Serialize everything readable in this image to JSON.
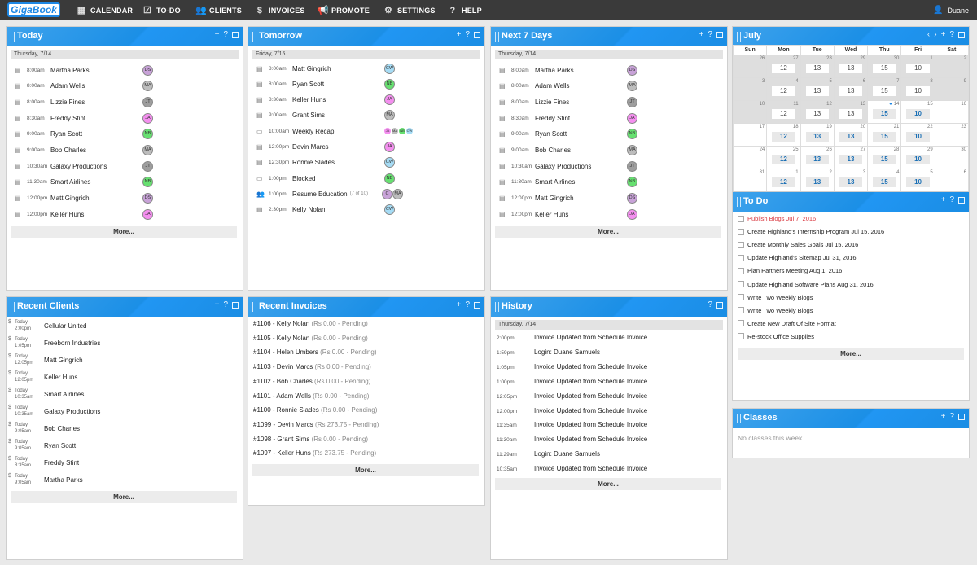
{
  "app": {
    "logo": "GigaBook",
    "user": "Duane"
  },
  "nav": [
    {
      "label": "CALENDAR",
      "icon": "calendar-icon"
    },
    {
      "label": "TO-DO",
      "icon": "checkbox-icon"
    },
    {
      "label": "CLIENTS",
      "icon": "clients-icon"
    },
    {
      "label": "INVOICES",
      "icon": "dollar-icon"
    },
    {
      "label": "PROMOTE",
      "icon": "megaphone-icon"
    },
    {
      "label": "SETTINGS",
      "icon": "gear-icon"
    },
    {
      "label": "HELP",
      "icon": "help-icon"
    }
  ],
  "today": {
    "title": "Today",
    "day": "Thursday, 7/14",
    "more": "More...",
    "items": [
      {
        "time": "8:00am",
        "name": "Martha Parks",
        "avatar": "DS",
        "color": "#c8a2d8"
      },
      {
        "time": "8:00am",
        "name": "Adam Wells",
        "avatar": "MA",
        "color": "#bdbdbd"
      },
      {
        "time": "8:00am",
        "name": "Lizzie Fines",
        "avatar": "JT",
        "color": "#9e9e9e"
      },
      {
        "time": "8:30am",
        "name": "Freddy Stint",
        "avatar": "JA",
        "color": "#f48fef"
      },
      {
        "time": "9:00am",
        "name": "Ryan Scott",
        "avatar": "NB",
        "color": "#66e070"
      },
      {
        "time": "9:00am",
        "name": "Bob Charles",
        "avatar": "MA",
        "color": "#bdbdbd"
      },
      {
        "time": "10:30am",
        "name": "Galaxy Productions",
        "avatar": "JT",
        "color": "#9e9e9e"
      },
      {
        "time": "11:30am",
        "name": "Smart Airlines",
        "avatar": "NB",
        "color": "#66e070"
      },
      {
        "time": "12:00pm",
        "name": "Matt Gingrich",
        "avatar": "DS",
        "color": "#c8a2d8"
      },
      {
        "time": "12:00pm",
        "name": "Keller Huns",
        "avatar": "JA",
        "color": "#f48fef"
      }
    ]
  },
  "tomorrow": {
    "title": "Tomorrow",
    "day": "Friday, 7/15",
    "items": [
      {
        "time": "8:00am",
        "name": "Matt Gingrich",
        "avatars": [
          {
            "t": "CW",
            "c": "#a6dcf5"
          }
        ],
        "icon": "appointment-icon"
      },
      {
        "time": "8:00am",
        "name": "Ryan Scott",
        "avatars": [
          {
            "t": "NB",
            "c": "#66e070"
          }
        ],
        "icon": "appointment-icon"
      },
      {
        "time": "8:30am",
        "name": "Keller Huns",
        "avatars": [
          {
            "t": "JA",
            "c": "#f48fef"
          }
        ],
        "icon": "appointment-icon"
      },
      {
        "time": "9:00am",
        "name": "Grant Sims",
        "avatars": [
          {
            "t": "MA",
            "c": "#bdbdbd"
          }
        ],
        "icon": "appointment-icon"
      },
      {
        "time": "10:00am",
        "name": "Weekly Recap",
        "avatars": [
          {
            "t": "JA",
            "c": "#f48fef"
          },
          {
            "t": "MA",
            "c": "#bdbdbd"
          },
          {
            "t": "NB",
            "c": "#66e070"
          },
          {
            "t": "CW",
            "c": "#a6dcf5"
          }
        ],
        "icon": "event-icon",
        "small": true
      },
      {
        "time": "12:00pm",
        "name": "Devin Marcs",
        "avatars": [
          {
            "t": "JA",
            "c": "#f48fef"
          }
        ],
        "icon": "appointment-icon"
      },
      {
        "time": "12:30pm",
        "name": "Ronnie Slades",
        "avatars": [
          {
            "t": "CW",
            "c": "#a6dcf5"
          }
        ],
        "icon": "appointment-icon"
      },
      {
        "time": "1:00pm",
        "name": "Blocked",
        "avatars": [
          {
            "t": "NB",
            "c": "#66e070"
          }
        ],
        "icon": "event-icon"
      },
      {
        "time": "1:00pm",
        "name": "Resume Education",
        "suffix": "(7 of 10)",
        "avatars": [
          {
            "t": "C",
            "c": "#c8a2d8"
          },
          {
            "t": "MA",
            "c": "#bdbdbd"
          }
        ],
        "icon": "group-icon"
      },
      {
        "time": "2:30pm",
        "name": "Kelly Nolan",
        "avatars": [
          {
            "t": "CW",
            "c": "#a6dcf5"
          }
        ],
        "icon": "appointment-icon"
      }
    ]
  },
  "next7": {
    "title": "Next 7 Days",
    "day": "Thursday, 7/14",
    "more": "More...",
    "items": [
      {
        "time": "8:00am",
        "name": "Martha Parks",
        "avatar": "DS",
        "color": "#c8a2d8"
      },
      {
        "time": "8:00am",
        "name": "Adam Wells",
        "avatar": "MA",
        "color": "#bdbdbd"
      },
      {
        "time": "8:00am",
        "name": "Lizzie Fines",
        "avatar": "JT",
        "color": "#9e9e9e"
      },
      {
        "time": "8:30am",
        "name": "Freddy Stint",
        "avatar": "JA",
        "color": "#f48fef"
      },
      {
        "time": "9:00am",
        "name": "Ryan Scott",
        "avatar": "NB",
        "color": "#66e070"
      },
      {
        "time": "9:00am",
        "name": "Bob Charles",
        "avatar": "MA",
        "color": "#bdbdbd"
      },
      {
        "time": "10:30am",
        "name": "Galaxy Productions",
        "avatar": "JT",
        "color": "#9e9e9e"
      },
      {
        "time": "11:30am",
        "name": "Smart Airlines",
        "avatar": "NB",
        "color": "#66e070"
      },
      {
        "time": "12:00pm",
        "name": "Matt Gingrich",
        "avatar": "DS",
        "color": "#c8a2d8"
      },
      {
        "time": "12:00pm",
        "name": "Keller Huns",
        "avatar": "JA",
        "color": "#f48fef"
      }
    ]
  },
  "calendar": {
    "title": "July",
    "headers": [
      "Sun",
      "Mon",
      "Tue",
      "Wed",
      "Thu",
      "Fri",
      "Sat"
    ],
    "weeks": [
      [
        {
          "d": "26",
          "c": "",
          "p": 1
        },
        {
          "d": "27",
          "c": "12",
          "p": 1
        },
        {
          "d": "28",
          "c": "13",
          "p": 1
        },
        {
          "d": "29",
          "c": "13",
          "p": 1
        },
        {
          "d": "30",
          "c": "15",
          "p": 1
        },
        {
          "d": "1",
          "c": "10",
          "p": 1
        },
        {
          "d": "2",
          "c": "",
          "p": 1
        }
      ],
      [
        {
          "d": "3",
          "c": "",
          "p": 1
        },
        {
          "d": "4",
          "c": "12",
          "p": 1
        },
        {
          "d": "5",
          "c": "13",
          "p": 1
        },
        {
          "d": "6",
          "c": "13",
          "p": 1
        },
        {
          "d": "7",
          "c": "15",
          "p": 1
        },
        {
          "d": "8",
          "c": "10",
          "p": 1
        },
        {
          "d": "9",
          "c": "",
          "p": 1
        }
      ],
      [
        {
          "d": "10",
          "c": "",
          "p": 1
        },
        {
          "d": "11",
          "c": "12",
          "p": 1
        },
        {
          "d": "12",
          "c": "13",
          "p": 1
        },
        {
          "d": "13",
          "c": "13",
          "p": 1
        },
        {
          "d": "14",
          "c": "15",
          "p": 0,
          "today": 1
        },
        {
          "d": "15",
          "c": "10",
          "p": 0
        },
        {
          "d": "16",
          "c": "",
          "p": 0
        }
      ],
      [
        {
          "d": "17",
          "c": "",
          "p": 0
        },
        {
          "d": "18",
          "c": "12",
          "p": 0
        },
        {
          "d": "19",
          "c": "13",
          "p": 0
        },
        {
          "d": "20",
          "c": "13",
          "p": 0
        },
        {
          "d": "21",
          "c": "15",
          "p": 0
        },
        {
          "d": "22",
          "c": "10",
          "p": 0
        },
        {
          "d": "23",
          "c": "",
          "p": 0
        }
      ],
      [
        {
          "d": "24",
          "c": "",
          "p": 0
        },
        {
          "d": "25",
          "c": "12",
          "p": 0
        },
        {
          "d": "26",
          "c": "13",
          "p": 0
        },
        {
          "d": "27",
          "c": "13",
          "p": 0
        },
        {
          "d": "28",
          "c": "15",
          "p": 0
        },
        {
          "d": "29",
          "c": "10",
          "p": 0
        },
        {
          "d": "30",
          "c": "",
          "p": 0
        }
      ],
      [
        {
          "d": "31",
          "c": "",
          "p": 0
        },
        {
          "d": "1",
          "c": "12",
          "p": 0
        },
        {
          "d": "2",
          "c": "13",
          "p": 0
        },
        {
          "d": "3",
          "c": "13",
          "p": 0
        },
        {
          "d": "4",
          "c": "15",
          "p": 0
        },
        {
          "d": "5",
          "c": "10",
          "p": 0
        },
        {
          "d": "6",
          "c": "",
          "p": 0
        }
      ]
    ]
  },
  "todo": {
    "title": "To Do",
    "more": "More...",
    "items": [
      {
        "text": "Publish Blogs Jul 7, 2016",
        "overdue": true
      },
      {
        "text": "Create Highland's Internship Program Jul 15, 2016"
      },
      {
        "text": "Create Monthly Sales Goals Jul 15, 2016"
      },
      {
        "text": "Update Highland's Sitemap Jul 31, 2016"
      },
      {
        "text": "Plan Partners Meeting Aug 1, 2016"
      },
      {
        "text": "Update Highland Software Plans Aug 31, 2016"
      },
      {
        "text": "Write Two Weekly Blogs"
      },
      {
        "text": "Write Two Weekly Blogs"
      },
      {
        "text": "Create New Draft Of Site Format"
      },
      {
        "text": "Re-stock Office Supplies"
      }
    ]
  },
  "clients": {
    "title": "Recent Clients",
    "more": "More...",
    "items": [
      {
        "day": "Today",
        "time": "2:00pm",
        "name": "Cellular United"
      },
      {
        "day": "Today",
        "time": "1:05pm",
        "name": "Freeborn Industries"
      },
      {
        "day": "Today",
        "time": "12:05pm",
        "name": "Matt Gingrich"
      },
      {
        "day": "Today",
        "time": "12:05pm",
        "name": "Keller Huns"
      },
      {
        "day": "Today",
        "time": "10:35am",
        "name": "Smart Airlines"
      },
      {
        "day": "Today",
        "time": "10:35am",
        "name": "Galaxy Productions"
      },
      {
        "day": "Today",
        "time": "9:05am",
        "name": "Bob Charles"
      },
      {
        "day": "Today",
        "time": "9:05am",
        "name": "Ryan Scott"
      },
      {
        "day": "Today",
        "time": "8:35am",
        "name": "Freddy Stint"
      },
      {
        "day": "Today",
        "time": "9:05am",
        "name": "Martha Parks"
      }
    ]
  },
  "invoices": {
    "title": "Recent Invoices",
    "more": "More...",
    "items": [
      {
        "label": "#1106 - Kelly Nolan",
        "status": "(Rs 0.00 - Pending)"
      },
      {
        "label": "#1105 - Kelly Nolan",
        "status": "(Rs 0.00 - Pending)"
      },
      {
        "label": "#1104 - Helen Umbers",
        "status": "(Rs 0.00 - Pending)"
      },
      {
        "label": "#1103 - Devin Marcs",
        "status": "(Rs 0.00 - Pending)"
      },
      {
        "label": "#1102 - Bob Charles",
        "status": "(Rs 0.00 - Pending)"
      },
      {
        "label": "#1101 - Adam Wells",
        "status": "(Rs 0.00 - Pending)"
      },
      {
        "label": "#1100 - Ronnie Slades",
        "status": "(Rs 0.00 - Pending)"
      },
      {
        "label": "#1099 - Devin Marcs",
        "status": "(Rs 273.75 - Pending)"
      },
      {
        "label": "#1098 - Grant Sims",
        "status": "(Rs 0.00 - Pending)"
      },
      {
        "label": "#1097 - Keller Huns",
        "status": "(Rs 273.75 - Pending)"
      }
    ]
  },
  "history": {
    "title": "History",
    "day": "Thursday, 7/14",
    "more": "More...",
    "items": [
      {
        "time": "2:00pm",
        "text": "Invoice Updated from Schedule Invoice"
      },
      {
        "time": "1:59pm",
        "text": "Login: Duane Samuels"
      },
      {
        "time": "1:05pm",
        "text": "Invoice Updated from Schedule Invoice"
      },
      {
        "time": "1:00pm",
        "text": "Invoice Updated from Schedule Invoice"
      },
      {
        "time": "12:05pm",
        "text": "Invoice Updated from Schedule Invoice"
      },
      {
        "time": "12:00pm",
        "text": "Invoice Updated from Schedule Invoice"
      },
      {
        "time": "11:35am",
        "text": "Invoice Updated from Schedule Invoice"
      },
      {
        "time": "11:30am",
        "text": "Invoice Updated from Schedule Invoice"
      },
      {
        "time": "11:29am",
        "text": "Login: Duane Samuels"
      },
      {
        "time": "10:35am",
        "text": "Invoice Updated from Schedule Invoice"
      }
    ]
  },
  "classes": {
    "title": "Classes",
    "empty": "No classes this week"
  },
  "colors": {
    "header_blue": "#1a8de4",
    "overdue_red": "#d9363e",
    "topbar": "#3a3a3a"
  }
}
